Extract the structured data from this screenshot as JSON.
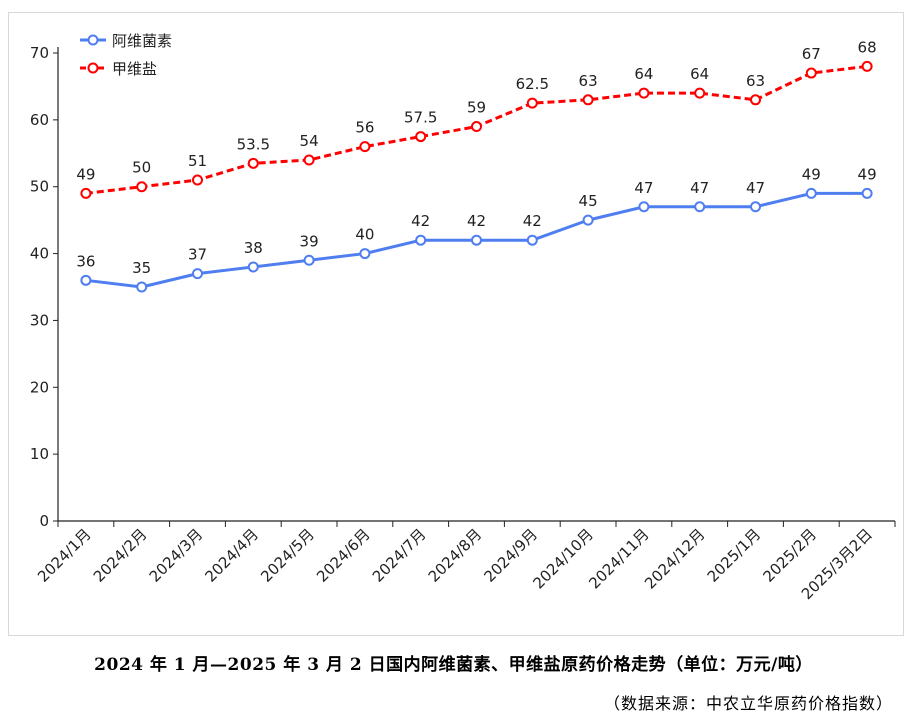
{
  "caption": "2024 年 1 月—2025 年 3 月 2 日国内阿维菌素、甲维盐原药价格走势（单位：万元/吨）",
  "source": "（数据来源：中农立华原药价格指数）",
  "chart_data": {
    "type": "line",
    "title": "",
    "xlabel": "",
    "ylabel": "",
    "ylim": [
      0,
      70
    ],
    "yticks": [
      0,
      10,
      20,
      30,
      40,
      50,
      60,
      70
    ],
    "categories": [
      "2024/1月",
      "2024/2月",
      "2024/3月",
      "2024/4月",
      "2024/5月",
      "2024/6月",
      "2024/7月",
      "2024/8月",
      "2024/9月",
      "2024/10月",
      "2024/11月",
      "2024/12月",
      "2025/1月",
      "2025/2月",
      "2025/3月2日"
    ],
    "legend_position": "top-left",
    "series": [
      {
        "name": "阿维菌素",
        "color": "#4f7ef0",
        "line_style": "solid",
        "values": [
          36,
          35,
          37,
          38,
          39,
          40,
          42,
          42,
          42,
          45,
          47,
          47,
          47,
          49,
          49
        ],
        "labels": [
          "36",
          "35",
          "37",
          "38",
          "39",
          "40",
          "42",
          "42",
          "42",
          "45",
          "47",
          "47",
          "47",
          "49",
          "49"
        ]
      },
      {
        "name": "甲维盐",
        "color": "#ff0000",
        "line_style": "dashed",
        "values": [
          49,
          50,
          51,
          53.5,
          54,
          56,
          57.5,
          59,
          62.5,
          63,
          64,
          64,
          63,
          67,
          68
        ],
        "labels": [
          "49",
          "50",
          "51",
          "53.5",
          "54",
          "56",
          "57.5",
          "59",
          "62.5",
          "63",
          "64",
          "64",
          "63",
          "67",
          "68"
        ]
      }
    ]
  }
}
